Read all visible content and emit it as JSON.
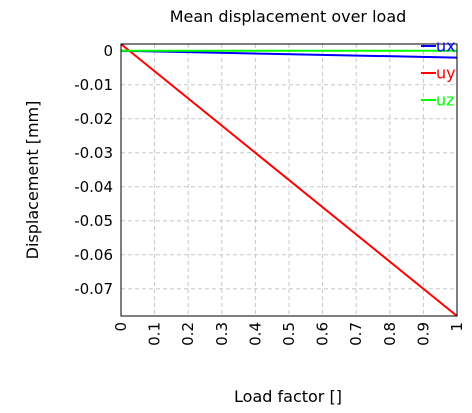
{
  "chart_data": {
    "type": "line",
    "title": "Mean displacement over load",
    "xlabel": "Load factor []",
    "ylabel": "Displacement [mm]",
    "xlim": [
      0,
      1
    ],
    "ylim": [
      -0.078,
      0.002
    ],
    "x_ticks": [
      0,
      0.1,
      0.2,
      0.3,
      0.4,
      0.5,
      0.6,
      0.7,
      0.8,
      0.9,
      1
    ],
    "x_tick_labels": [
      "0",
      "0.1",
      "0.2",
      "0.3",
      "0.4",
      "0.5",
      "0.6",
      "0.7",
      "0.8",
      "0.9",
      "1"
    ],
    "y_ticks": [
      0,
      -0.01,
      -0.02,
      -0.03,
      -0.04,
      -0.05,
      -0.06,
      -0.07
    ],
    "y_tick_labels": [
      "0",
      "-0.01",
      "-0.02",
      "-0.03",
      "-0.04",
      "-0.05",
      "-0.06",
      "-0.07"
    ],
    "grid": true,
    "legend_position": "top-right",
    "series": [
      {
        "name": "ux",
        "color": "#0000ff",
        "x": [
          0,
          1
        ],
        "y": [
          0,
          -0.002
        ]
      },
      {
        "name": "uy",
        "color": "#ff0000",
        "x": [
          0,
          1
        ],
        "y": [
          0.002,
          -0.078
        ]
      },
      {
        "name": "uz",
        "color": "#00ff00",
        "x": [
          0,
          1
        ],
        "y": [
          0,
          0
        ]
      }
    ]
  }
}
